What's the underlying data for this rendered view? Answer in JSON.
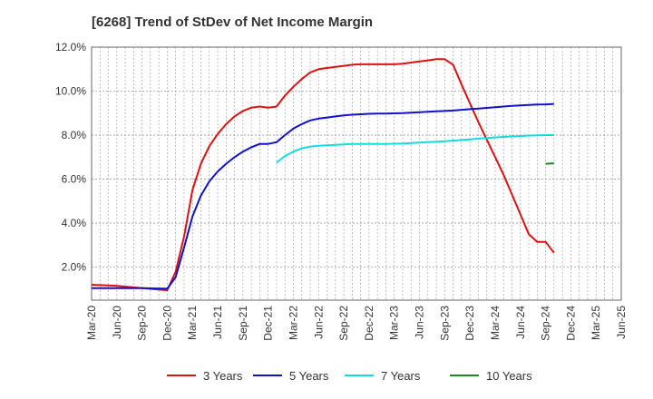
{
  "chart_data": {
    "type": "line",
    "title": "[6268]  Trend of StDev of Net Income Margin",
    "xlabel": "",
    "ylabel": "",
    "x_ticks": [
      "Mar-20",
      "Jun-20",
      "Sep-20",
      "Dec-20",
      "Mar-21",
      "Jun-21",
      "Sep-21",
      "Dec-21",
      "Mar-22",
      "Jun-22",
      "Sep-22",
      "Dec-22",
      "Mar-23",
      "Jun-23",
      "Sep-23",
      "Dec-23",
      "Mar-24",
      "Jun-24",
      "Sep-24",
      "Dec-24",
      "Mar-25",
      "Jun-25"
    ],
    "y_ticks": [
      "2.0%",
      "4.0%",
      "6.0%",
      "8.0%",
      "10.0%",
      "12.0%"
    ],
    "y_tick_values": [
      2,
      4,
      6,
      8,
      10,
      12
    ],
    "ylim": [
      0.5,
      12.0
    ],
    "x_range_months": [
      0,
      63
    ],
    "grid": true,
    "legend_position": "bottom",
    "series": [
      {
        "name": "3 Years",
        "color": "#dd1111",
        "points": [
          [
            0,
            1.2
          ],
          [
            3,
            1.15
          ],
          [
            6,
            1.05
          ],
          [
            9,
            0.95
          ],
          [
            10,
            1.8
          ],
          [
            11,
            3.4
          ],
          [
            12,
            5.5
          ],
          [
            13,
            6.7
          ],
          [
            14,
            7.5
          ],
          [
            15,
            8.05
          ],
          [
            16,
            8.5
          ],
          [
            17,
            8.85
          ],
          [
            18,
            9.1
          ],
          [
            19,
            9.25
          ],
          [
            20,
            9.3
          ],
          [
            21,
            9.25
          ],
          [
            22,
            9.3
          ],
          [
            23,
            9.8
          ],
          [
            24,
            10.2
          ],
          [
            25,
            10.55
          ],
          [
            26,
            10.85
          ],
          [
            27,
            11.0
          ],
          [
            28,
            11.05
          ],
          [
            29,
            11.1
          ],
          [
            30,
            11.15
          ],
          [
            31,
            11.2
          ],
          [
            32,
            11.22
          ],
          [
            33,
            11.22
          ],
          [
            34,
            11.22
          ],
          [
            35,
            11.22
          ],
          [
            36,
            11.22
          ],
          [
            37,
            11.25
          ],
          [
            38,
            11.3
          ],
          [
            39,
            11.35
          ],
          [
            40,
            11.4
          ],
          [
            41,
            11.45
          ],
          [
            42,
            11.45
          ],
          [
            43,
            11.2
          ],
          [
            44,
            10.3
          ],
          [
            45,
            9.45
          ],
          [
            46,
            8.6
          ],
          [
            47,
            7.8
          ],
          [
            48,
            7.0
          ],
          [
            49,
            6.2
          ],
          [
            50,
            5.3
          ],
          [
            51,
            4.4
          ],
          [
            52,
            3.5
          ],
          [
            53,
            3.15
          ],
          [
            54,
            3.15
          ],
          [
            55,
            2.65
          ]
        ]
      },
      {
        "name": "5 Years",
        "color": "#1111cc",
        "points": [
          [
            0,
            1.05
          ],
          [
            3,
            1.05
          ],
          [
            6,
            1.05
          ],
          [
            9,
            1.02
          ],
          [
            10,
            1.55
          ],
          [
            11,
            2.9
          ],
          [
            12,
            4.3
          ],
          [
            13,
            5.25
          ],
          [
            14,
            5.9
          ],
          [
            15,
            6.35
          ],
          [
            16,
            6.7
          ],
          [
            17,
            7.0
          ],
          [
            18,
            7.25
          ],
          [
            19,
            7.45
          ],
          [
            20,
            7.6
          ],
          [
            21,
            7.6
          ],
          [
            22,
            7.68
          ],
          [
            23,
            8.0
          ],
          [
            24,
            8.3
          ],
          [
            25,
            8.5
          ],
          [
            26,
            8.67
          ],
          [
            27,
            8.75
          ],
          [
            28,
            8.8
          ],
          [
            29,
            8.85
          ],
          [
            30,
            8.9
          ],
          [
            31,
            8.93
          ],
          [
            32,
            8.95
          ],
          [
            33,
            8.97
          ],
          [
            34,
            8.98
          ],
          [
            35,
            8.98
          ],
          [
            36,
            8.99
          ],
          [
            37,
            9.0
          ],
          [
            38,
            9.02
          ],
          [
            39,
            9.04
          ],
          [
            40,
            9.06
          ],
          [
            41,
            9.08
          ],
          [
            42,
            9.1
          ],
          [
            43,
            9.12
          ],
          [
            44,
            9.15
          ],
          [
            45,
            9.18
          ],
          [
            46,
            9.21
          ],
          [
            47,
            9.24
          ],
          [
            48,
            9.27
          ],
          [
            49,
            9.3
          ],
          [
            50,
            9.33
          ],
          [
            51,
            9.35
          ],
          [
            52,
            9.37
          ],
          [
            53,
            9.39
          ],
          [
            54,
            9.4
          ],
          [
            55,
            9.42
          ]
        ]
      },
      {
        "name": "7 Years",
        "color": "#11dddd",
        "points": [
          [
            22,
            6.75
          ],
          [
            23,
            7.05
          ],
          [
            24,
            7.25
          ],
          [
            25,
            7.4
          ],
          [
            26,
            7.48
          ],
          [
            27,
            7.52
          ],
          [
            28,
            7.54
          ],
          [
            29,
            7.56
          ],
          [
            30,
            7.58
          ],
          [
            31,
            7.6
          ],
          [
            32,
            7.6
          ],
          [
            33,
            7.6
          ],
          [
            34,
            7.6
          ],
          [
            35,
            7.6
          ],
          [
            36,
            7.61
          ],
          [
            37,
            7.62
          ],
          [
            38,
            7.64
          ],
          [
            39,
            7.66
          ],
          [
            40,
            7.68
          ],
          [
            41,
            7.7
          ],
          [
            42,
            7.72
          ],
          [
            43,
            7.75
          ],
          [
            44,
            7.78
          ],
          [
            45,
            7.81
          ],
          [
            46,
            7.84
          ],
          [
            47,
            7.87
          ],
          [
            48,
            7.9
          ],
          [
            49,
            7.92
          ],
          [
            50,
            7.94
          ],
          [
            51,
            7.96
          ],
          [
            52,
            7.98
          ],
          [
            53,
            7.99
          ],
          [
            54,
            8.0
          ],
          [
            55,
            8.0
          ]
        ]
      },
      {
        "name": "10 Years",
        "color": "#228822",
        "points": [
          [
            54,
            6.7
          ],
          [
            55,
            6.72
          ]
        ]
      }
    ]
  }
}
